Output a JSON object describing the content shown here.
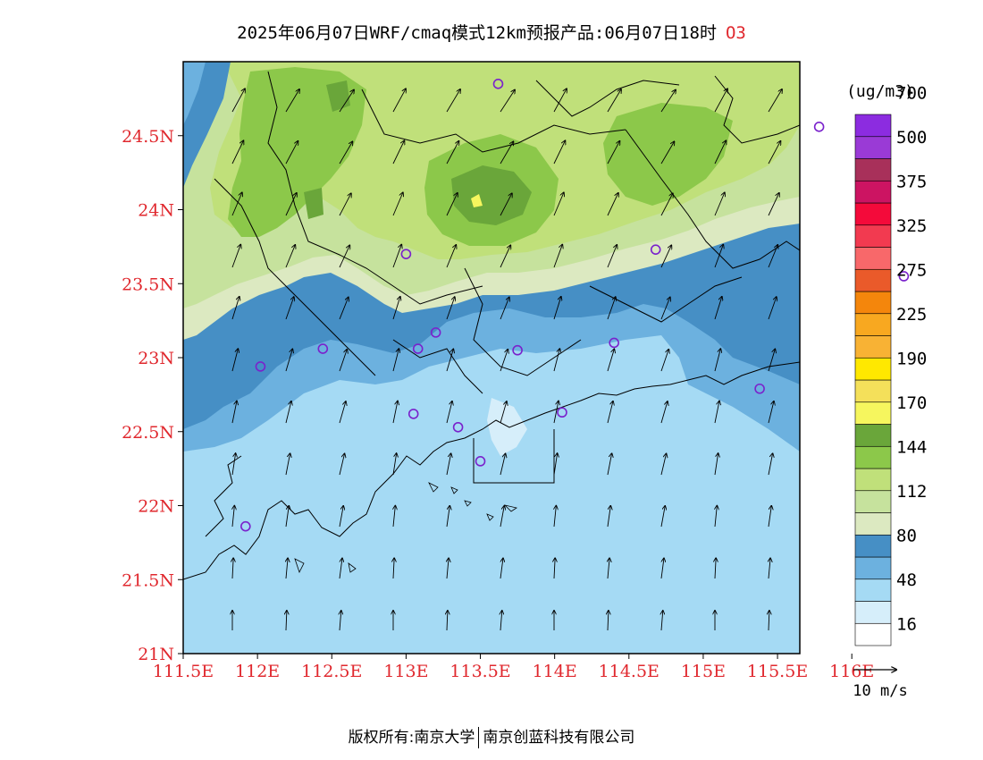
{
  "title": {
    "text": "2025年06月07日WRF/cmaq模式12km预报产品:06月07日18时",
    "species": "O3"
  },
  "axes": {
    "lon_labels": [
      "111.5E",
      "112E",
      "112.5E",
      "113E",
      "113.5E",
      "114E",
      "114.5E",
      "115E",
      "115.5E",
      "116E"
    ],
    "lat_labels": [
      "21N",
      "21.5N",
      "22N",
      "22.5N",
      "23N",
      "23.5N",
      "24N",
      "24.5N"
    ],
    "lon_range": [
      111.5,
      115.65
    ],
    "lat_range": [
      21.0,
      25.0
    ],
    "label_color": "#e0282e"
  },
  "colorbar": {
    "unit": "(ug/m3)",
    "colors": [
      "#ffffff",
      "#d6eefa",
      "#a5daf4",
      "#6cb1df",
      "#468fc5",
      "#dce9c1",
      "#c6e29d",
      "#c0e07a",
      "#8cc84a",
      "#6aa63a",
      "#f6f65e",
      "#f4e05a",
      "#ffe800",
      "#f8b234",
      "#f8a820",
      "#f4860c",
      "#ea5a2a",
      "#f8686a",
      "#f23a50",
      "#f40a3a",
      "#cc1462",
      "#a8305a",
      "#9a3ad6",
      "#8c2ce0"
    ],
    "labels": [
      "16",
      "48",
      "80",
      "112",
      "144",
      "170",
      "190",
      "225",
      "275",
      "325",
      "375",
      "500",
      "700"
    ]
  },
  "wind_legend": {
    "label": "10 m/s"
  },
  "stations_color": "#7a22cc",
  "copyright": {
    "left": "版权所有:南京大学",
    "right": "南京创蓝科技有限公司"
  }
}
